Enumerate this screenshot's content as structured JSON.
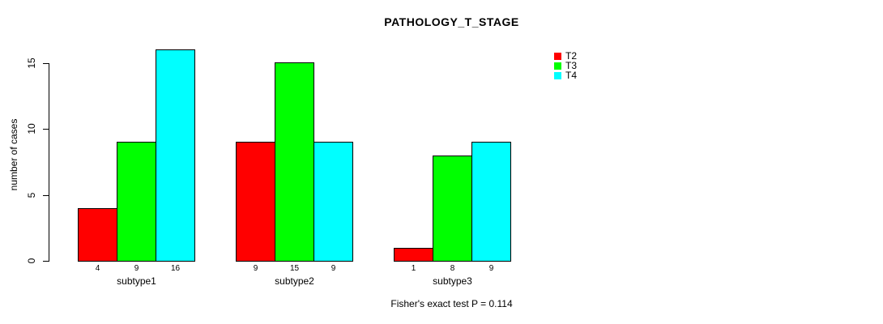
{
  "chart_data": {
    "type": "bar",
    "title": "PATHOLOGY_T_STAGE",
    "ylabel": "number of cases",
    "xlabel": "",
    "categories": [
      "subtype1",
      "subtype2",
      "subtype3"
    ],
    "series": [
      {
        "name": "T2",
        "color": "#ff0000",
        "values": [
          4,
          9,
          1
        ]
      },
      {
        "name": "T3",
        "color": "#00ff00",
        "values": [
          9,
          15,
          8
        ]
      },
      {
        "name": "T4",
        "color": "#00ffff",
        "values": [
          16,
          9,
          9
        ]
      }
    ],
    "yticks": [
      "0",
      "5",
      "10",
      "15"
    ],
    "ylim": [
      0,
      16
    ],
    "grid": false,
    "bar_value_labels_shown": true,
    "legend_position": "top-right",
    "annotation": "Fisher's exact test P = 0.114"
  },
  "colors": {
    "background": "#ffffff",
    "axis": "#000000",
    "text": "#000000",
    "bar_border": "#000000",
    "series_t2": "#ff0000",
    "series_t3": "#00ff00",
    "series_t4": "#00ffff"
  }
}
